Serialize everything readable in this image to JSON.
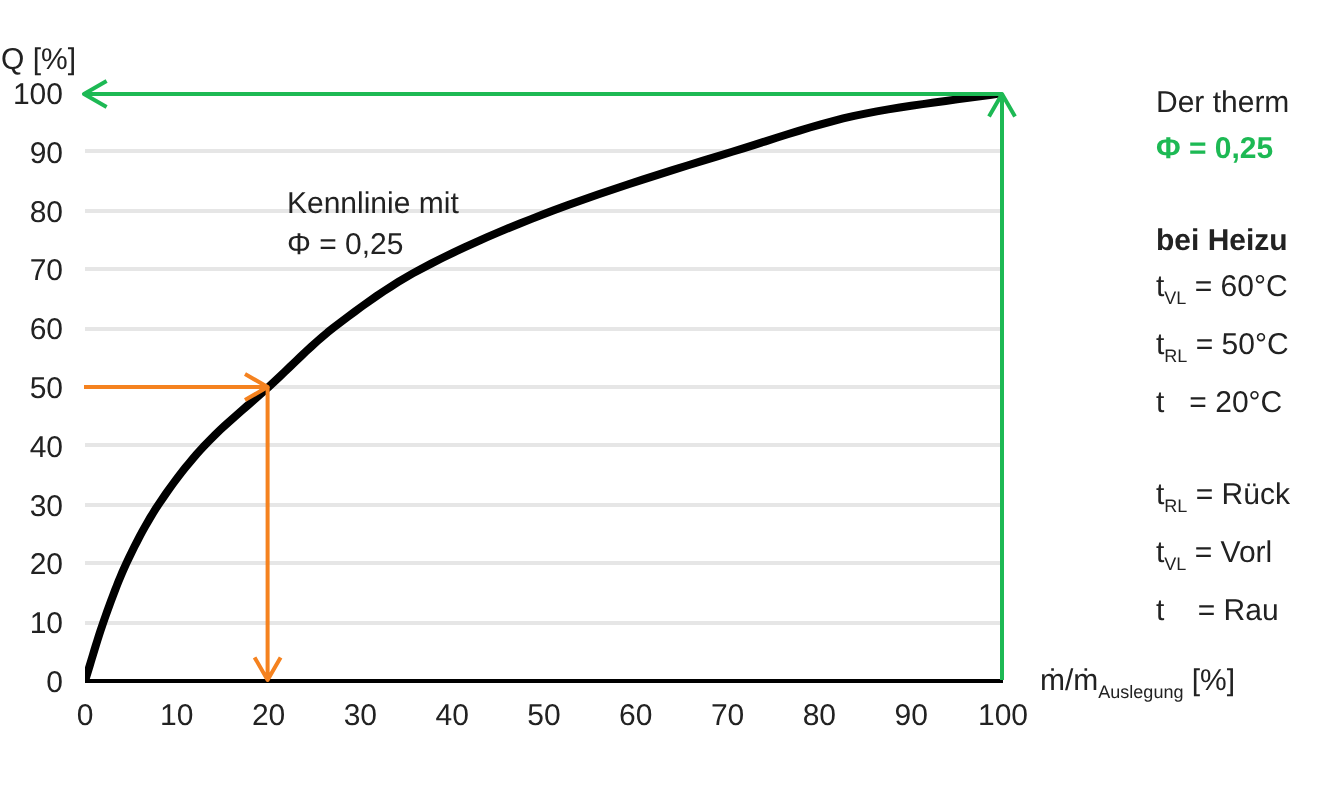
{
  "chart_data": {
    "type": "line",
    "x": [
      0,
      2,
      4.5,
      8,
      13,
      20,
      27,
      36.5,
      51,
      70.5,
      85,
      100
    ],
    "series": [
      {
        "color": "#000000",
        "values": [
          0,
          10,
          20,
          30,
          40,
          50,
          60,
          70,
          80,
          90,
          96.5,
          100
        ]
      }
    ],
    "xlabel": "ṁ/ṁ$_{Auslegung}$ [%]",
    "ylabel": "Q [%]",
    "xlim": [
      0,
      100
    ],
    "ylim": [
      0,
      100
    ],
    "xticks": [
      0,
      10,
      20,
      30,
      40,
      50,
      60,
      70,
      80,
      90,
      100
    ],
    "yticks": [
      0,
      10,
      20,
      30,
      40,
      50,
      60,
      70,
      80,
      90,
      100
    ],
    "grid": "y",
    "annotations": [
      "Kennlinie mit\nΦ = 0,25",
      "Der therm",
      "Φ = 0,25",
      "bei Heizu",
      "t$_{VL}$ = 60°C",
      "t$_{RL}$ = 50°C",
      "t   = 20°C",
      "t$_{RL}$ = Rück",
      "t$_{VL}$ = Vorl",
      "t    = Rau"
    ]
  }
}
